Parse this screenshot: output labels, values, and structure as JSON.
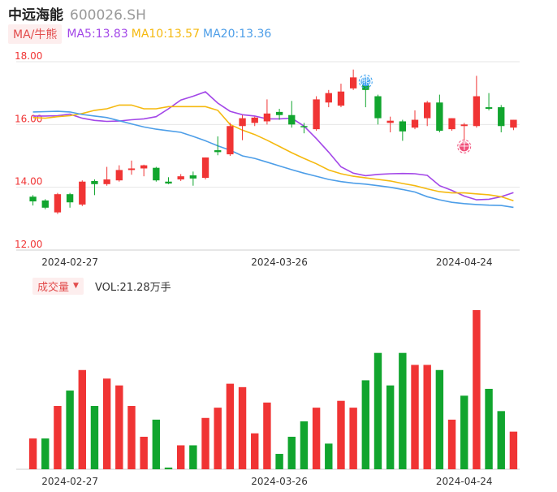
{
  "header": {
    "name": "中远海能",
    "code": "600026.SH"
  },
  "ma_legend": {
    "tag": "MA/牛熊",
    "items": [
      {
        "label": "MA5:13.83",
        "color": "#a347e8"
      },
      {
        "label": "MA10:13.57",
        "color": "#f5b90f"
      },
      {
        "label": "MA20:13.36",
        "color": "#4d9ee8"
      }
    ]
  },
  "volume_legend": {
    "tag": "成交量",
    "label": "VOL:21.28万手"
  },
  "colors": {
    "up": "#f03434",
    "down": "#11a52e",
    "grid": "#e6e6e6",
    "price_axis": "#f03434"
  },
  "markers": {
    "sell": "熊",
    "bull": "牛"
  },
  "chart_data": [
    {
      "type": "candlestick",
      "y_ticks": [
        "18.00",
        "16.00",
        "14.00",
        "12.00"
      ],
      "ylim": [
        12,
        18
      ],
      "x_ticks": [
        "2024-02-27",
        "2024-03-26",
        "2024-04-24"
      ],
      "candles": [
        {
          "o": 13.7,
          "h": 13.75,
          "l": 13.42,
          "c": 13.55
        },
        {
          "o": 13.58,
          "h": 13.62,
          "l": 13.3,
          "c": 13.35
        },
        {
          "o": 13.2,
          "h": 13.82,
          "l": 13.15,
          "c": 13.78
        },
        {
          "o": 13.78,
          "h": 13.82,
          "l": 13.35,
          "c": 13.52
        },
        {
          "o": 13.45,
          "h": 14.22,
          "l": 13.4,
          "c": 14.18
        },
        {
          "o": 14.2,
          "h": 14.25,
          "l": 13.75,
          "c": 14.1
        },
        {
          "o": 14.1,
          "h": 14.65,
          "l": 14.05,
          "c": 14.25
        },
        {
          "o": 14.22,
          "h": 14.7,
          "l": 14.18,
          "c": 14.55
        },
        {
          "o": 14.55,
          "h": 14.85,
          "l": 14.4,
          "c": 14.6
        },
        {
          "o": 14.6,
          "h": 14.72,
          "l": 14.35,
          "c": 14.7
        },
        {
          "o": 14.62,
          "h": 14.65,
          "l": 14.18,
          "c": 14.22
        },
        {
          "o": 14.18,
          "h": 14.32,
          "l": 14.1,
          "c": 14.12
        },
        {
          "o": 14.25,
          "h": 14.42,
          "l": 14.2,
          "c": 14.35
        },
        {
          "o": 14.38,
          "h": 14.5,
          "l": 14.05,
          "c": 14.28
        },
        {
          "o": 14.3,
          "h": 14.95,
          "l": 14.25,
          "c": 14.95
        },
        {
          "o": 15.18,
          "h": 15.62,
          "l": 15.02,
          "c": 15.12
        },
        {
          "o": 15.05,
          "h": 16.05,
          "l": 15.0,
          "c": 15.95
        },
        {
          "o": 15.95,
          "h": 16.3,
          "l": 15.5,
          "c": 16.2
        },
        {
          "o": 16.05,
          "h": 16.25,
          "l": 15.95,
          "c": 16.22
        },
        {
          "o": 16.1,
          "h": 16.8,
          "l": 16.0,
          "c": 16.35
        },
        {
          "o": 16.4,
          "h": 16.5,
          "l": 16.15,
          "c": 16.3
        },
        {
          "o": 16.3,
          "h": 16.75,
          "l": 15.9,
          "c": 16.0
        },
        {
          "o": 15.95,
          "h": 16.05,
          "l": 15.72,
          "c": 15.92
        },
        {
          "o": 15.85,
          "h": 16.9,
          "l": 15.8,
          "c": 16.8
        },
        {
          "o": 16.7,
          "h": 17.1,
          "l": 16.55,
          "c": 17.0
        },
        {
          "o": 16.6,
          "h": 17.3,
          "l": 16.55,
          "c": 17.05
        },
        {
          "o": 17.15,
          "h": 17.75,
          "l": 17.1,
          "c": 17.5
        },
        {
          "o": 17.28,
          "h": 17.32,
          "l": 16.55,
          "c": 17.1
        },
        {
          "o": 16.9,
          "h": 16.95,
          "l": 16.0,
          "c": 16.2
        },
        {
          "o": 16.05,
          "h": 16.25,
          "l": 15.75,
          "c": 16.12
        },
        {
          "o": 16.1,
          "h": 16.15,
          "l": 15.48,
          "c": 15.78
        },
        {
          "o": 15.9,
          "h": 16.45,
          "l": 15.85,
          "c": 16.15
        },
        {
          "o": 16.2,
          "h": 16.75,
          "l": 15.95,
          "c": 16.7
        },
        {
          "o": 16.7,
          "h": 16.95,
          "l": 15.75,
          "c": 15.8
        },
        {
          "o": 15.85,
          "h": 16.2,
          "l": 15.8,
          "c": 16.2
        },
        {
          "o": 15.95,
          "h": 16.05,
          "l": 15.4,
          "c": 16.0
        },
        {
          "o": 15.95,
          "h": 17.55,
          "l": 15.9,
          "c": 16.9
        },
        {
          "o": 16.55,
          "h": 17.0,
          "l": 16.45,
          "c": 16.5
        },
        {
          "o": 16.55,
          "h": 16.62,
          "l": 15.75,
          "c": 15.95
        },
        {
          "o": 15.9,
          "h": 16.15,
          "l": 15.82,
          "c": 16.15
        }
      ],
      "ma5": [
        16.27,
        16.27,
        16.28,
        16.33,
        16.2,
        16.13,
        16.1,
        16.11,
        16.15,
        16.18,
        16.25,
        16.5,
        16.78,
        16.9,
        17.04,
        16.68,
        16.42,
        16.31,
        16.27,
        16.18,
        16.18,
        16.2,
        15.95,
        15.55,
        15.12,
        14.65,
        14.45,
        14.37,
        14.41,
        14.43,
        14.44,
        14.43,
        14.38,
        14.05,
        13.9,
        13.72,
        13.6,
        13.62,
        13.7,
        13.83
      ],
      "ma10": [
        16.22,
        16.2,
        16.25,
        16.28,
        16.35,
        16.45,
        16.5,
        16.62,
        16.62,
        16.5,
        16.5,
        16.57,
        16.57,
        16.57,
        16.57,
        16.45,
        16.0,
        15.82,
        15.68,
        15.5,
        15.3,
        15.1,
        14.92,
        14.75,
        14.55,
        14.43,
        14.35,
        14.3,
        14.25,
        14.2,
        14.12,
        14.05,
        13.95,
        13.86,
        13.82,
        13.82,
        13.79,
        13.76,
        13.7,
        13.57
      ],
      "ma20": [
        16.4,
        16.41,
        16.42,
        16.4,
        16.32,
        16.27,
        16.22,
        16.12,
        16.02,
        15.92,
        15.85,
        15.8,
        15.75,
        15.62,
        15.48,
        15.32,
        15.18,
        15.0,
        14.92,
        14.8,
        14.68,
        14.56,
        14.45,
        14.35,
        14.25,
        14.18,
        14.13,
        14.1,
        14.05,
        14.0,
        13.93,
        13.85,
        13.7,
        13.6,
        13.52,
        13.48,
        13.45,
        13.43,
        13.42,
        13.36
      ],
      "sell_marker_index": 27,
      "bull_marker_index": 35
    },
    {
      "type": "bar",
      "title": "成交量",
      "values": [
        18,
        18,
        37,
        46,
        58,
        37,
        53,
        49,
        37,
        19,
        29,
        1,
        14,
        14,
        30,
        36,
        50,
        48,
        21,
        39,
        9,
        19,
        28,
        36,
        15,
        40,
        36,
        52,
        68,
        49,
        68,
        61,
        61,
        58,
        29,
        43,
        93,
        47,
        34,
        22
      ],
      "directions": [
        "up",
        "down",
        "up",
        "down",
        "up",
        "down",
        "up",
        "up",
        "up",
        "up",
        "down",
        "down",
        "up",
        "down",
        "up",
        "up",
        "up",
        "up",
        "up",
        "up",
        "down",
        "down",
        "down",
        "up",
        "down",
        "up",
        "up",
        "down",
        "down",
        "down",
        "down",
        "up",
        "up",
        "down",
        "up",
        "down",
        "up",
        "down",
        "down",
        "up"
      ]
    }
  ]
}
